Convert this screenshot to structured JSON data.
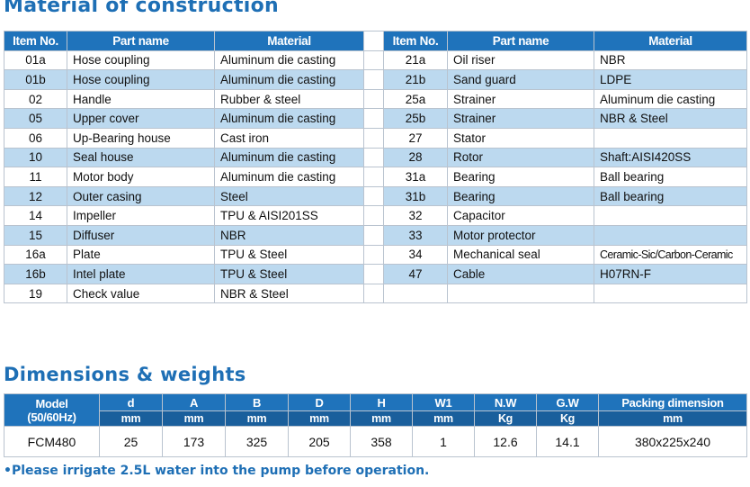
{
  "material_title": "Material of construction",
  "top_note": "...",
  "material_headers": {
    "item": "Item No.",
    "part": "Part name",
    "material": "Material"
  },
  "material_left": [
    [
      "01a",
      "Hose coupling",
      "Aluminum die casting"
    ],
    [
      "01b",
      "Hose coupling",
      "Aluminum die casting"
    ],
    [
      "02",
      "Handle",
      "Rubber & steel"
    ],
    [
      "05",
      "Upper cover",
      "Aluminum die casting"
    ],
    [
      "06",
      "Up-Bearing house",
      "Cast iron"
    ],
    [
      "10",
      "Seal house",
      "Aluminum die casting"
    ],
    [
      "11",
      "Motor body",
      "Aluminum die casting"
    ],
    [
      "12",
      "Outer casing",
      "Steel"
    ],
    [
      "14",
      "Impeller",
      "TPU & AISI201SS"
    ],
    [
      "15",
      "Diffuser",
      "NBR"
    ],
    [
      "16a",
      "Plate",
      "TPU & Steel"
    ],
    [
      "16b",
      "Intel plate",
      "TPU & Steel"
    ],
    [
      "19",
      "Check value",
      "NBR & Steel"
    ]
  ],
  "material_right": [
    [
      "21a",
      "Oil riser",
      "NBR"
    ],
    [
      "21b",
      "Sand guard",
      "LDPE"
    ],
    [
      "25a",
      "Strainer",
      "Aluminum die casting"
    ],
    [
      "25b",
      "Strainer",
      "NBR & Steel"
    ],
    [
      "27",
      "Stator",
      ""
    ],
    [
      "28",
      "Rotor",
      "Shaft:AISI420SS"
    ],
    [
      "31a",
      "Bearing",
      "Ball bearing"
    ],
    [
      "31b",
      "Bearing",
      "Ball bearing"
    ],
    [
      "32",
      "Capacitor",
      ""
    ],
    [
      "33",
      "Motor protector",
      ""
    ],
    [
      "34",
      "Mechanical seal",
      "Ceramic-Sic/Carbon-Ceramic"
    ],
    [
      "47",
      "Cable",
      "H07RN-F"
    ],
    [
      "",
      "",
      ""
    ]
  ],
  "dim_title": "Dimensions & weights",
  "dim_headers": {
    "model": "Model",
    "model_sub": "(50/60Hz)",
    "cols": [
      "d",
      "A",
      "B",
      "D",
      "H",
      "W1",
      "N.W",
      "G.W",
      "Packing dimension"
    ],
    "units": [
      "mm",
      "mm",
      "mm",
      "mm",
      "mm",
      "mm",
      "Kg",
      "Kg",
      "mm"
    ]
  },
  "dim_row": [
    "FCM480",
    "25",
    "173",
    "325",
    "205",
    "358",
    "1",
    "12.6",
    "14.1",
    "380x225x240"
  ],
  "footnote": "•Please irrigate 2.5L water into the pump before operation.",
  "colors": {
    "header_bg": "#1f73bb",
    "alt_row_bg": "#bcd9ef",
    "title": "#1e6fb5"
  }
}
